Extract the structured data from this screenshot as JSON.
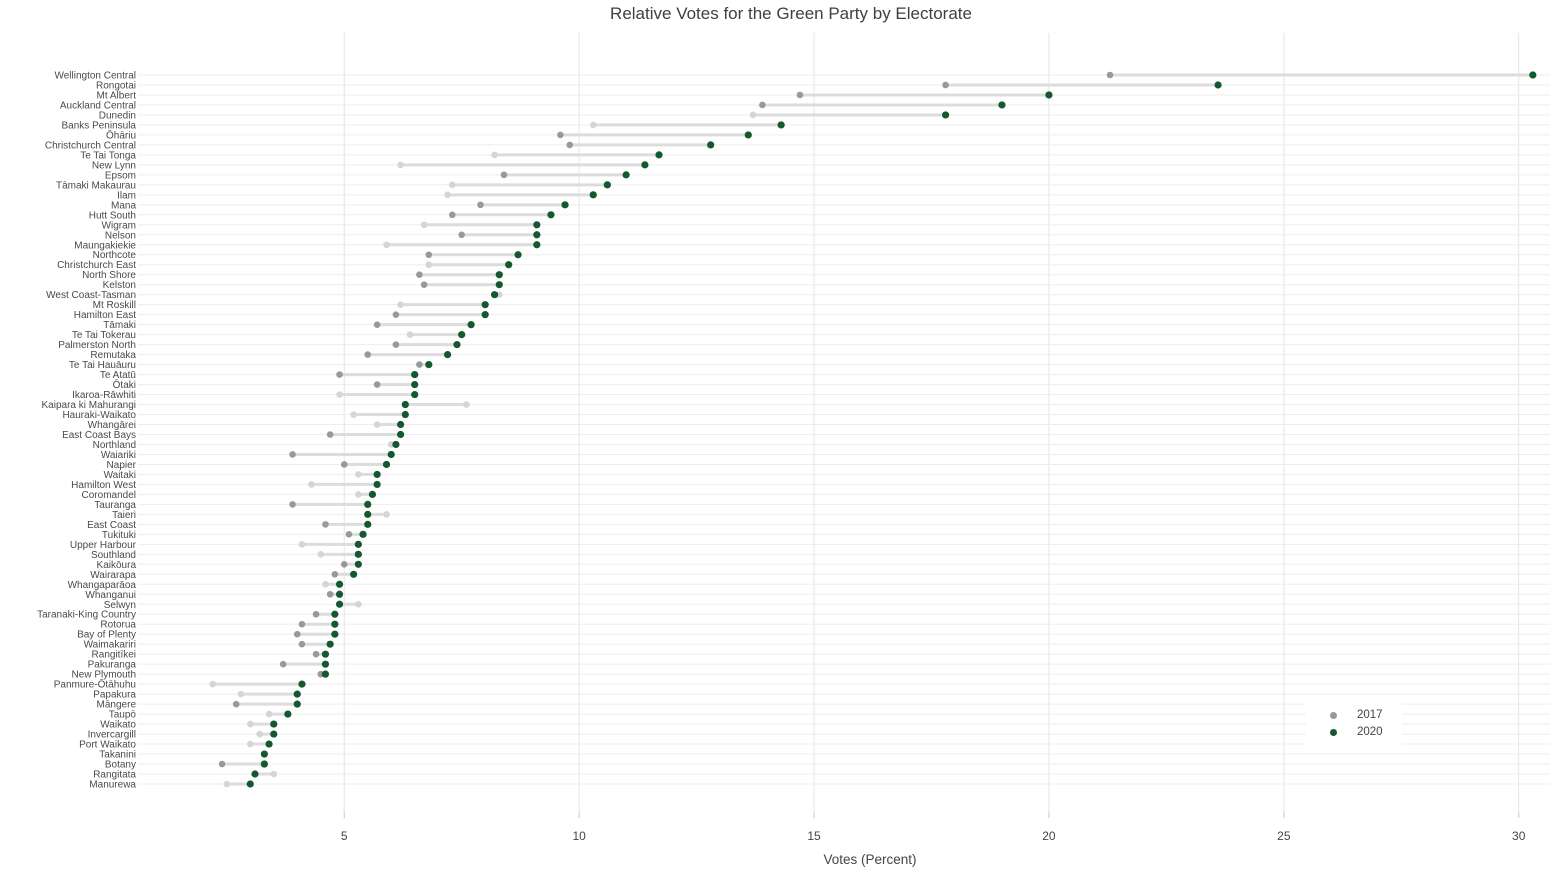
{
  "title": "Relative Votes for the Green Party by Electorate",
  "xlabel": "Votes (Percent)",
  "legend": {
    "items": [
      {
        "label": "2017",
        "color": "#999999"
      },
      {
        "label": "2020",
        "color": "#15572f"
      }
    ]
  },
  "colors": {
    "series_2017": "#999999",
    "series_2017_muted": "#d5d5d5",
    "series_2020": "#15572f",
    "connector_line": "#dcdcdc",
    "gridline_h": "#ededed",
    "gridline_v": "#e5e5e5",
    "tick_stub": "#c9c9c9",
    "axis_text": "#444444",
    "label_text": "#4a4a4a",
    "background": "#ffffff"
  },
  "chart_data": {
    "type": "scatter",
    "subtype": "dumbbell-dot-plot",
    "title": "Relative Votes for the Green Party by Electorate",
    "xlabel": "Votes (Percent)",
    "ylabel": "",
    "xticks": [
      5,
      10,
      15,
      20,
      25,
      30
    ],
    "xlim": [
      0.7,
      30.6
    ],
    "grid": true,
    "legend_position": "bottom-right",
    "series_names": [
      "2017",
      "2020"
    ],
    "rows": [
      {
        "name": "Wellington Central",
        "v2017": 21.3,
        "v2020": 30.3,
        "muted2017": false
      },
      {
        "name": "Rongotai",
        "v2017": 17.8,
        "v2020": 23.6,
        "muted2017": false
      },
      {
        "name": "Mt Albert",
        "v2017": 14.7,
        "v2020": 20.0,
        "muted2017": false
      },
      {
        "name": "Auckland Central",
        "v2017": 13.9,
        "v2020": 19.0,
        "muted2017": false
      },
      {
        "name": "Dunedin",
        "v2017": 13.7,
        "v2020": 17.8,
        "muted2017": true
      },
      {
        "name": "Banks Peninsula",
        "v2017": 10.3,
        "v2020": 14.3,
        "muted2017": true
      },
      {
        "name": "Ōhāriu",
        "v2017": 9.6,
        "v2020": 13.6,
        "muted2017": false
      },
      {
        "name": "Christchurch Central",
        "v2017": 9.8,
        "v2020": 12.8,
        "muted2017": false
      },
      {
        "name": "Te Tai Tonga",
        "v2017": 8.2,
        "v2020": 11.7,
        "muted2017": true
      },
      {
        "name": "New Lynn",
        "v2017": 6.2,
        "v2020": 11.4,
        "muted2017": true
      },
      {
        "name": "Epsom",
        "v2017": 8.4,
        "v2020": 11.0,
        "muted2017": false
      },
      {
        "name": "Tāmaki Makaurau",
        "v2017": 7.3,
        "v2020": 10.6,
        "muted2017": true
      },
      {
        "name": "Ilam",
        "v2017": 7.2,
        "v2020": 10.3,
        "muted2017": true
      },
      {
        "name": "Mana",
        "v2017": 7.9,
        "v2020": 9.7,
        "muted2017": false
      },
      {
        "name": "Hutt South",
        "v2017": 7.3,
        "v2020": 9.4,
        "muted2017": false
      },
      {
        "name": "Wigram",
        "v2017": 6.7,
        "v2020": 9.1,
        "muted2017": true
      },
      {
        "name": "Nelson",
        "v2017": 7.5,
        "v2020": 9.1,
        "muted2017": false
      },
      {
        "name": "Maungakiekie",
        "v2017": 5.9,
        "v2020": 9.1,
        "muted2017": true
      },
      {
        "name": "Northcote",
        "v2017": 6.8,
        "v2020": 8.7,
        "muted2017": false
      },
      {
        "name": "Christchurch East",
        "v2017": 6.8,
        "v2020": 8.5,
        "muted2017": true
      },
      {
        "name": "North Shore",
        "v2017": 6.6,
        "v2020": 8.3,
        "muted2017": false
      },
      {
        "name": "Kelston",
        "v2017": 6.7,
        "v2020": 8.3,
        "muted2017": false
      },
      {
        "name": "West Coast-Tasman",
        "v2017": 8.3,
        "v2020": 8.2,
        "muted2017": true
      },
      {
        "name": "Mt Roskill",
        "v2017": 6.2,
        "v2020": 8.0,
        "muted2017": true
      },
      {
        "name": "Hamilton East",
        "v2017": 6.1,
        "v2020": 8.0,
        "muted2017": false
      },
      {
        "name": "Tāmaki",
        "v2017": 5.7,
        "v2020": 7.7,
        "muted2017": false
      },
      {
        "name": "Te Tai Tokerau",
        "v2017": 6.4,
        "v2020": 7.5,
        "muted2017": true
      },
      {
        "name": "Palmerston North",
        "v2017": 6.1,
        "v2020": 7.4,
        "muted2017": false
      },
      {
        "name": "Remutaka",
        "v2017": 5.5,
        "v2020": 7.2,
        "muted2017": false
      },
      {
        "name": "Te Tai Hauāuru",
        "v2017": 6.6,
        "v2020": 6.8,
        "muted2017": false
      },
      {
        "name": "Te Atatū",
        "v2017": 4.9,
        "v2020": 6.5,
        "muted2017": false
      },
      {
        "name": "Ōtaki",
        "v2017": 5.7,
        "v2020": 6.5,
        "muted2017": false
      },
      {
        "name": "Ikaroa-Rāwhiti",
        "v2017": 4.9,
        "v2020": 6.5,
        "muted2017": true
      },
      {
        "name": "Kaipara ki Mahurangi",
        "v2017": 7.6,
        "v2020": 6.3,
        "muted2017": true
      },
      {
        "name": "Hauraki-Waikato",
        "v2017": 5.2,
        "v2020": 6.3,
        "muted2017": true
      },
      {
        "name": "Whangārei",
        "v2017": 5.7,
        "v2020": 6.2,
        "muted2017": true
      },
      {
        "name": "East Coast Bays",
        "v2017": 4.7,
        "v2020": 6.2,
        "muted2017": false
      },
      {
        "name": "Northland",
        "v2017": 6.0,
        "v2020": 6.1,
        "muted2017": true
      },
      {
        "name": "Waiariki",
        "v2017": 3.9,
        "v2020": 6.0,
        "muted2017": false
      },
      {
        "name": "Napier",
        "v2017": 5.0,
        "v2020": 5.9,
        "muted2017": false
      },
      {
        "name": "Waitaki",
        "v2017": 5.3,
        "v2020": 5.7,
        "muted2017": true
      },
      {
        "name": "Hamilton West",
        "v2017": 4.3,
        "v2020": 5.7,
        "muted2017": true
      },
      {
        "name": "Coromandel",
        "v2017": 5.3,
        "v2020": 5.6,
        "muted2017": true
      },
      {
        "name": "Tauranga",
        "v2017": 3.9,
        "v2020": 5.5,
        "muted2017": false
      },
      {
        "name": "Taieri",
        "v2017": 5.9,
        "v2020": 5.5,
        "muted2017": true
      },
      {
        "name": "East Coast",
        "v2017": 4.6,
        "v2020": 5.5,
        "muted2017": false
      },
      {
        "name": "Tukituki",
        "v2017": 5.1,
        "v2020": 5.4,
        "muted2017": false
      },
      {
        "name": "Upper Harbour",
        "v2017": 4.1,
        "v2020": 5.3,
        "muted2017": true
      },
      {
        "name": "Southland",
        "v2017": 4.5,
        "v2020": 5.3,
        "muted2017": true
      },
      {
        "name": "Kaikōura",
        "v2017": 5.0,
        "v2020": 5.3,
        "muted2017": false
      },
      {
        "name": "Wairarapa",
        "v2017": 4.8,
        "v2020": 5.2,
        "muted2017": false
      },
      {
        "name": "Whangaparāoa",
        "v2017": 4.6,
        "v2020": 4.9,
        "muted2017": true
      },
      {
        "name": "Whanganui",
        "v2017": 4.7,
        "v2020": 4.9,
        "muted2017": false
      },
      {
        "name": "Selwyn",
        "v2017": 5.3,
        "v2020": 4.9,
        "muted2017": true
      },
      {
        "name": "Taranaki-King Country",
        "v2017": 4.4,
        "v2020": 4.8,
        "muted2017": false
      },
      {
        "name": "Rotorua",
        "v2017": 4.1,
        "v2020": 4.8,
        "muted2017": false
      },
      {
        "name": "Bay of Plenty",
        "v2017": 4.0,
        "v2020": 4.8,
        "muted2017": false
      },
      {
        "name": "Waimakariri",
        "v2017": 4.1,
        "v2020": 4.7,
        "muted2017": false
      },
      {
        "name": "Rangitīkei",
        "v2017": 4.4,
        "v2020": 4.6,
        "muted2017": false
      },
      {
        "name": "Pakuranga",
        "v2017": 3.7,
        "v2020": 4.6,
        "muted2017": false
      },
      {
        "name": "New Plymouth",
        "v2017": 4.5,
        "v2020": 4.6,
        "muted2017": false
      },
      {
        "name": "Panmure-Ōtāhuhu",
        "v2017": 2.2,
        "v2020": 4.1,
        "muted2017": true
      },
      {
        "name": "Papakura",
        "v2017": 2.8,
        "v2020": 4.0,
        "muted2017": true
      },
      {
        "name": "Māngere",
        "v2017": 2.7,
        "v2020": 4.0,
        "muted2017": false
      },
      {
        "name": "Taupō",
        "v2017": 3.4,
        "v2020": 3.8,
        "muted2017": true
      },
      {
        "name": "Waikato",
        "v2017": 3.0,
        "v2020": 3.5,
        "muted2017": true
      },
      {
        "name": "Invercargill",
        "v2017": 3.2,
        "v2020": 3.5,
        "muted2017": true
      },
      {
        "name": "Port Waikato",
        "v2017": 3.0,
        "v2020": 3.4,
        "muted2017": true
      },
      {
        "name": "Takanini",
        "v2017": null,
        "v2020": 3.3,
        "muted2017": false
      },
      {
        "name": "Botany",
        "v2017": 2.4,
        "v2020": 3.3,
        "muted2017": false
      },
      {
        "name": "Rangitata",
        "v2017": 3.5,
        "v2020": 3.1,
        "muted2017": true
      },
      {
        "name": "Manurewa",
        "v2017": 2.5,
        "v2020": 3.0,
        "muted2017": true
      }
    ]
  }
}
